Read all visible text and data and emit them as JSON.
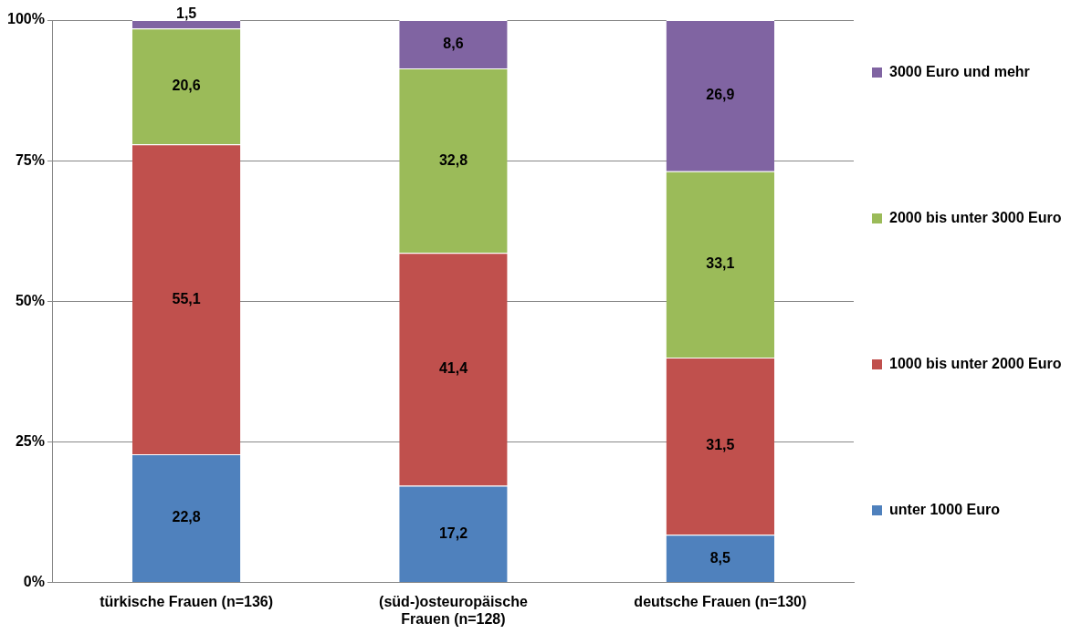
{
  "chart_data": {
    "type": "bar",
    "stacked": true,
    "categories": [
      "türkische Frauen (n=136)",
      "(süd-)osteuropäische Frauen (n=128)",
      "deutsche Frauen (n=130)"
    ],
    "series": [
      {
        "name": "unter 1000 Euro",
        "color": "#4f81bd",
        "values": [
          22.8,
          17.2,
          8.5
        ],
        "value_labels": [
          "22,8",
          "17,2",
          "8,5"
        ]
      },
      {
        "name": "1000 bis unter 2000 Euro",
        "color": "#c0504d",
        "values": [
          55.1,
          41.4,
          31.5
        ],
        "value_labels": [
          "55,1",
          "41,4",
          "31,5"
        ]
      },
      {
        "name": "2000 bis unter 3000 Euro",
        "color": "#9bbb59",
        "values": [
          20.6,
          32.8,
          33.1
        ],
        "value_labels": [
          "20,6",
          "32,8",
          "33,1"
        ]
      },
      {
        "name": "3000 Euro und mehr",
        "color": "#8064a2",
        "values": [
          1.5,
          8.6,
          26.9
        ],
        "value_labels": [
          "1,5",
          "8,6",
          "26,9"
        ]
      }
    ],
    "ylim": [
      0,
      100
    ],
    "yticks": [
      {
        "value": 0,
        "label": "0%"
      },
      {
        "value": 25,
        "label": "25%"
      },
      {
        "value": 50,
        "label": "50%"
      },
      {
        "value": 75,
        "label": "75%"
      },
      {
        "value": 100,
        "label": "100%"
      }
    ],
    "grid": "y",
    "legend": "right"
  }
}
